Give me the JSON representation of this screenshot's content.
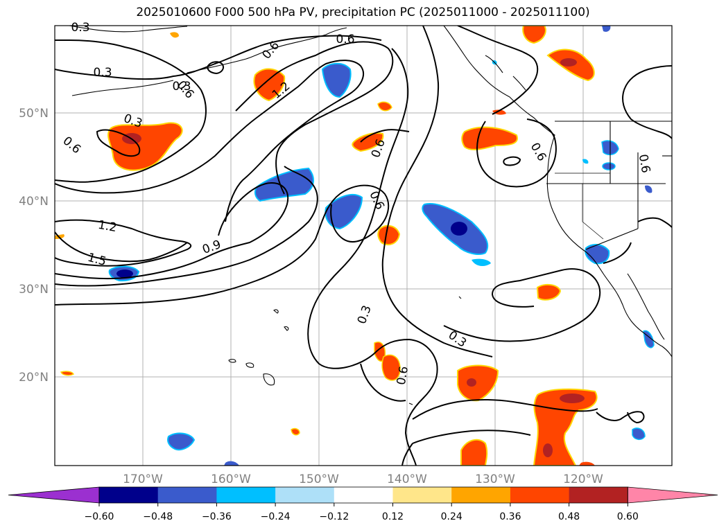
{
  "title": "2025010600 F000 500 hPa PV, precipitation PC (2025011000 - 2025011100)",
  "map": {
    "lon_range": [
      -180,
      -110
    ],
    "lat_range": [
      10,
      60
    ],
    "latitude_labels": [
      "50°N",
      "40°N",
      "30°N",
      "20°N"
    ],
    "longitude_labels": [
      "170°W",
      "160°W",
      "150°W",
      "140°W",
      "130°W",
      "120°W"
    ],
    "contour_labels": [
      "0.3",
      "0.3",
      "0.6",
      "0.6",
      "0.6",
      "0.3",
      "0.6",
      "1.2",
      "0.3",
      "0.6",
      "0.6",
      "0.6",
      "1.2",
      "1.5",
      "0.9",
      "0.6",
      "0.3",
      "0.3",
      "0.6"
    ],
    "gridlines": true
  },
  "colorbar": {
    "ticks": [
      "−0.60",
      "−0.48",
      "−0.36",
      "−0.24",
      "−0.12",
      "0.12",
      "0.24",
      "0.36",
      "0.48",
      "0.60"
    ],
    "colors": [
      "#9b30d0",
      "#00008b",
      "#3a5bcc",
      "#00bfff",
      "#aee0f8",
      "#ffffff",
      "#ffe68a",
      "#ffa500",
      "#ff4500",
      "#b22222",
      "#ff85a8"
    ]
  },
  "icons": [
    "coastline",
    "pv-contours",
    "precip-anomaly-shading"
  ]
}
